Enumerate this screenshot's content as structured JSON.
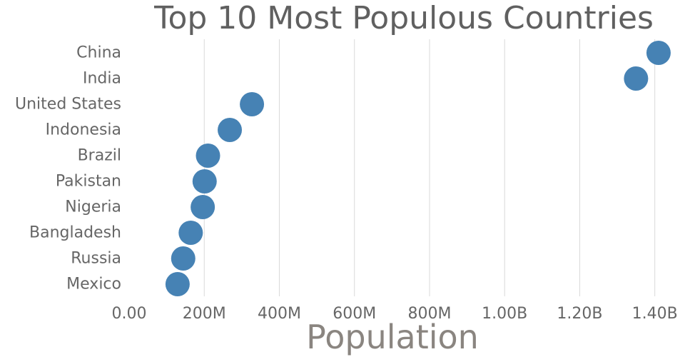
{
  "chart_data": {
    "type": "scatter",
    "title": "Top 10 Most Populous Countries",
    "xlabel": "Population",
    "ylabel": "",
    "xlim": [
      0,
      1450000000
    ],
    "x_ticks": [
      {
        "value": 0,
        "label": "0.00"
      },
      {
        "value": 200000000,
        "label": "200M"
      },
      {
        "value": 400000000,
        "label": "400M"
      },
      {
        "value": 600000000,
        "label": "600M"
      },
      {
        "value": 800000000,
        "label": "800M"
      },
      {
        "value": 1000000000,
        "label": "1.00B"
      },
      {
        "value": 1200000000,
        "label": "1.20B"
      },
      {
        "value": 1400000000,
        "label": "1.40B"
      }
    ],
    "grid": "vertical",
    "legend": "none",
    "marker_color": "#4682b4",
    "points": [
      {
        "category": "China",
        "value": 1410000000
      },
      {
        "category": "India",
        "value": 1350000000
      },
      {
        "category": "United States",
        "value": 327000000
      },
      {
        "category": "Indonesia",
        "value": 268000000
      },
      {
        "category": "Brazil",
        "value": 210000000
      },
      {
        "category": "Pakistan",
        "value": 201000000
      },
      {
        "category": "Nigeria",
        "value": 196000000
      },
      {
        "category": "Bangladesh",
        "value": 164000000
      },
      {
        "category": "Russia",
        "value": 144000000
      },
      {
        "category": "Mexico",
        "value": 129000000
      }
    ]
  }
}
